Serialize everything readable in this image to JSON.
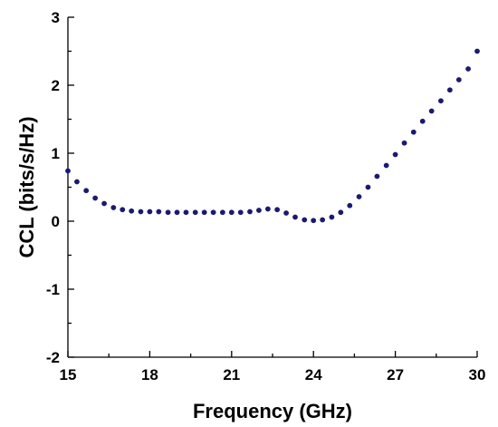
{
  "chart_data": {
    "type": "scatter",
    "title": "",
    "xlabel": "Frequency (GHz)",
    "ylabel": "CCL (bits/s/Hz)",
    "xlim": [
      15,
      30
    ],
    "ylim": [
      -2,
      3
    ],
    "x_ticks": [
      "15",
      "18",
      "21",
      "24",
      "27",
      "30"
    ],
    "y_ticks": [
      "-2",
      "-1",
      "0",
      "1",
      "2",
      "3"
    ],
    "grid": false,
    "marker_color": "#1a1a6e",
    "series": [
      {
        "x": [
          15.0,
          15.33,
          15.67,
          16.0,
          16.33,
          16.67,
          17.0,
          17.33,
          17.67,
          18.0,
          18.33,
          18.67,
          19.0,
          19.33,
          19.67,
          20.0,
          20.33,
          20.67,
          21.0,
          21.33,
          21.67,
          22.0,
          22.33,
          22.67,
          23.0,
          23.33,
          23.67,
          24.0,
          24.33,
          24.67,
          25.0,
          25.33,
          25.67,
          26.0,
          26.33,
          26.67,
          27.0,
          27.33,
          27.67,
          28.0,
          28.33,
          28.67,
          29.0,
          29.33,
          29.67,
          30.0
        ],
        "y": [
          0.74,
          0.58,
          0.45,
          0.34,
          0.26,
          0.2,
          0.17,
          0.15,
          0.14,
          0.14,
          0.14,
          0.13,
          0.13,
          0.13,
          0.13,
          0.13,
          0.13,
          0.13,
          0.13,
          0.13,
          0.14,
          0.16,
          0.18,
          0.17,
          0.12,
          0.06,
          0.02,
          0.01,
          0.02,
          0.06,
          0.13,
          0.23,
          0.36,
          0.5,
          0.66,
          0.82,
          0.98,
          1.15,
          1.31,
          1.47,
          1.62,
          1.77,
          1.93,
          2.08,
          2.24,
          2.5
        ]
      }
    ]
  }
}
